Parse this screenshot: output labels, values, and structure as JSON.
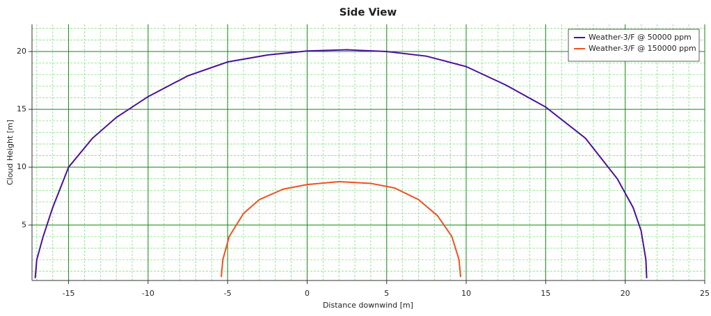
{
  "chart_data": {
    "type": "line",
    "title": "Side View",
    "x_label": "Distance downwind [m]",
    "y_label": "Cloud Height [m]",
    "xlim": [
      -17.3,
      25
    ],
    "ylim": [
      0.2,
      22.35
    ],
    "xticks": [
      -15,
      -10,
      -5,
      0,
      5,
      10,
      15,
      20,
      25
    ],
    "yticks": [
      5,
      10,
      15,
      20
    ],
    "grid": {
      "major": true,
      "minor": true
    },
    "legend": "upper right",
    "series": [
      {
        "name": "Weather-3/F @ 50000 ppm",
        "color": "#4b0f9e",
        "x": [
          -17.1,
          -17.0,
          -16.6,
          -16.0,
          -15,
          -13.5,
          -12,
          -10,
          -7.5,
          -5,
          -2.5,
          0,
          2.5,
          5,
          7.5,
          10,
          12.5,
          15,
          17.5,
          19.5,
          20.5,
          21.0,
          21.3,
          21.35
        ],
        "values": [
          0.4,
          2,
          4,
          6.5,
          10,
          12.5,
          14.3,
          16.1,
          17.9,
          19.1,
          19.7,
          20.05,
          20.15,
          20.0,
          19.6,
          18.7,
          17.1,
          15.2,
          12.5,
          9.0,
          6.5,
          4.5,
          2,
          0.4
        ]
      },
      {
        "name": "Weather-3/F @ 150000 ppm",
        "color": "#f0501e",
        "x": [
          -5.4,
          -5.3,
          -4.9,
          -4.0,
          -3,
          -1.5,
          0,
          2,
          4,
          5.5,
          7,
          8.2,
          9.1,
          9.55,
          9.65
        ],
        "values": [
          0.5,
          2,
          4,
          6,
          7.2,
          8.1,
          8.5,
          8.75,
          8.6,
          8.2,
          7.2,
          5.8,
          4,
          2,
          0.5
        ]
      }
    ]
  }
}
